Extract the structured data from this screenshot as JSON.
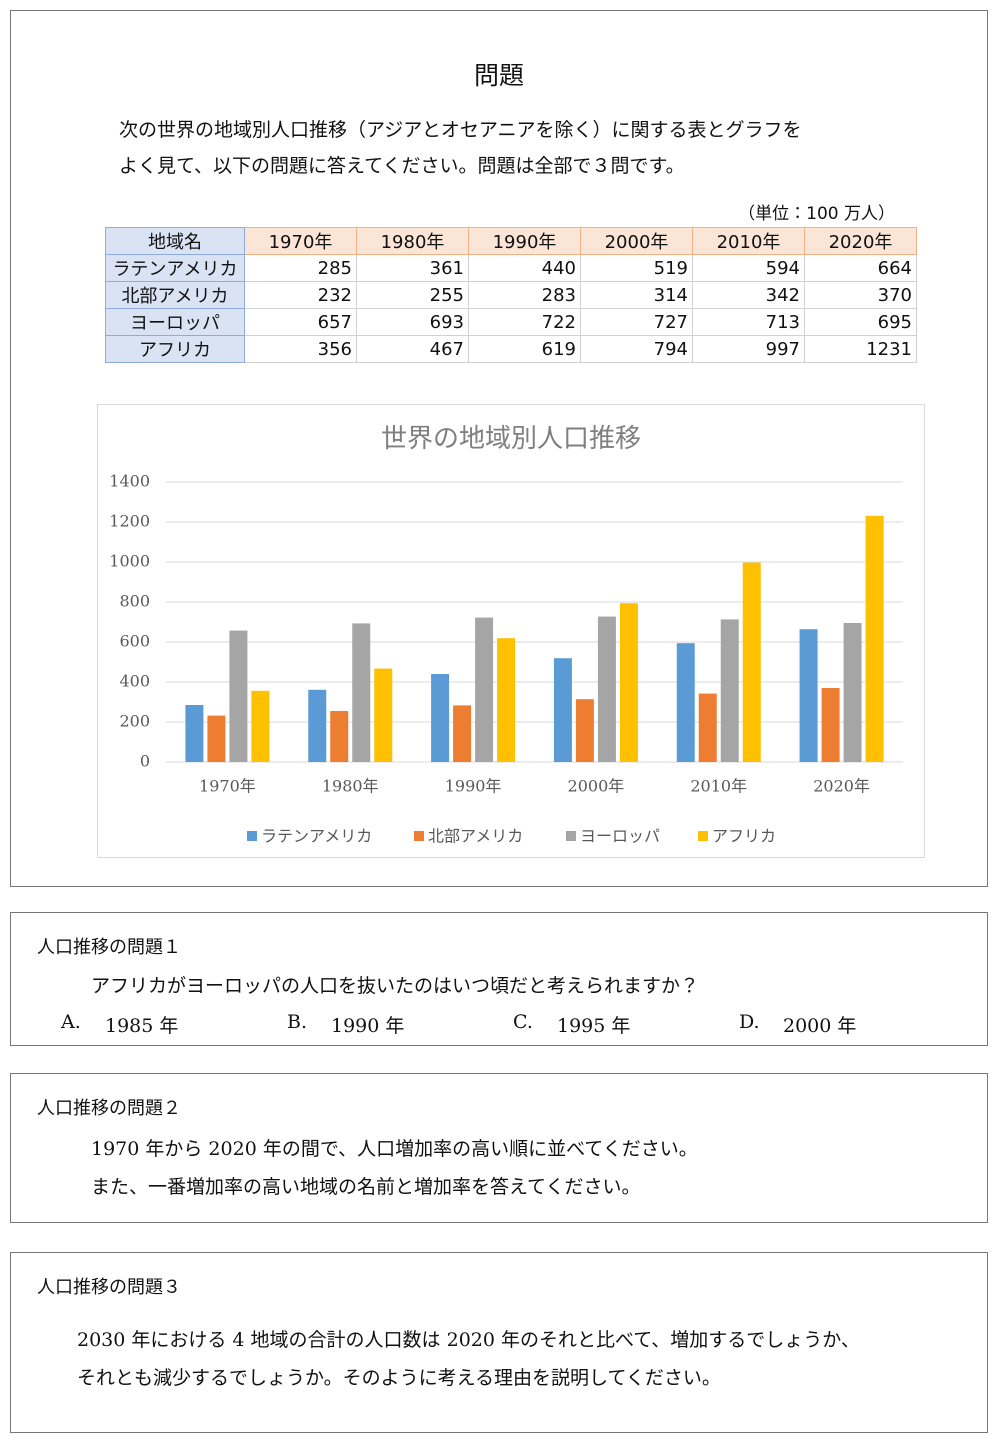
{
  "header": {
    "title": "問題",
    "intro": [
      "次の世界の地域別人口推移（アジアとオセアニアを除く）に関する表とグラフを",
      "よく見て、以下の問題に答えてください。問題は全部で３問です。"
    ]
  },
  "table": {
    "unit": "（単位：100 万人）",
    "columns": [
      "地域名",
      "1970年",
      "1980年",
      "1990年",
      "2000年",
      "2010年",
      "2020年"
    ],
    "rows": [
      [
        "ラテンアメリカ",
        285,
        361,
        440,
        519,
        594,
        664
      ],
      [
        "北部アメリカ",
        232,
        255,
        283,
        314,
        342,
        370
      ],
      [
        "ヨーロッパ",
        657,
        693,
        722,
        727,
        713,
        695
      ],
      [
        "アフリカ",
        356,
        467,
        619,
        794,
        997,
        1231
      ]
    ]
  },
  "chart_data": {
    "type": "bar",
    "title": "世界の地域別人口推移",
    "categories": [
      "1970年",
      "1980年",
      "1990年",
      "2000年",
      "2010年",
      "2020年"
    ],
    "series": [
      {
        "name": "ラテンアメリカ",
        "color": "#5b9bd5",
        "values": [
          285,
          361,
          440,
          519,
          594,
          664
        ]
      },
      {
        "name": "北部アメリカ",
        "color": "#ed7d31",
        "values": [
          232,
          255,
          283,
          314,
          342,
          370
        ]
      },
      {
        "name": "ヨーロッパ",
        "color": "#a5a5a5",
        "values": [
          657,
          693,
          722,
          727,
          713,
          695
        ]
      },
      {
        "name": "アフリカ",
        "color": "#ffc000",
        "values": [
          356,
          467,
          619,
          794,
          997,
          1231
        ]
      }
    ],
    "ylim": [
      0,
      1400
    ],
    "yticks": [
      0,
      200,
      400,
      600,
      800,
      1000,
      1200,
      1400
    ],
    "grid": true,
    "legend": "bottom"
  },
  "questions": [
    {
      "title": "人口推移の問題１",
      "lines": [
        "アフリカがヨーロッパの人口を抜いたのはいつ頃だと考えられますか？"
      ],
      "options": [
        {
          "letter": "A.",
          "text": "1985 年"
        },
        {
          "letter": "B.",
          "text": "1990 年"
        },
        {
          "letter": "C.",
          "text": "1995 年"
        },
        {
          "letter": "D.",
          "text": "2000 年"
        }
      ]
    },
    {
      "title": "人口推移の問題２",
      "lines": [
        "1970 年から 2020 年の間で、人口増加率の高い順に並べてください。",
        "また、一番増加率の高い地域の名前と増加率を答えてください。"
      ]
    },
    {
      "title": "人口推移の問題３",
      "lines": [
        "2030 年における 4 地域の合計の人口数は 2020 年のそれと比べて、増加するでしょうか、",
        "それとも減少するでしょうか。そのように考える理由を説明してください。"
      ]
    }
  ]
}
